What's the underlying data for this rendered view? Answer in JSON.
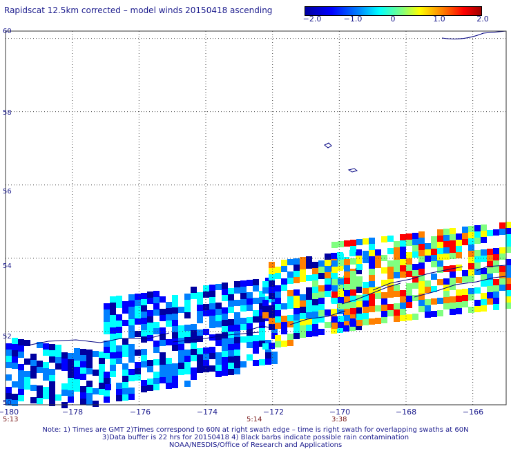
{
  "title": "Rapidscat 12.5km corrected – model winds 20150418 ascending",
  "colorbar": {
    "ticks": [
      "−2.0",
      "−1.0",
      "0",
      "1.0",
      "2.0"
    ],
    "colors": [
      "#0000a0",
      "#0000ff",
      "#0080ff",
      "#00ffff",
      "#80ff80",
      "#ffff00",
      "#ff8000",
      "#ff0000",
      "#a00000"
    ]
  },
  "axes": {
    "lon_labels": [
      "−180",
      "−178",
      "−176",
      "−174",
      "−172",
      "−170",
      "−168",
      "−166"
    ],
    "lat_labels": [
      "60",
      "58",
      "56",
      "54",
      "52",
      "50"
    ]
  },
  "times": [
    {
      "label": "5:13",
      "lon": -180
    },
    {
      "label": "5:14",
      "lon": -173
    },
    {
      "label": "3:38",
      "lon": -170
    }
  ],
  "notes": [
    "Note: 1) Times are GMT 2)Times correspond to 60N at right swath edge – time is right swath for overlapping swaths at 60N",
    "3)Data buffer is 22 hrs for 20150418 4) Black barbs indicate possible rain contamination",
    "NOAA/NESDIS/Office of Research and Applications"
  ]
}
